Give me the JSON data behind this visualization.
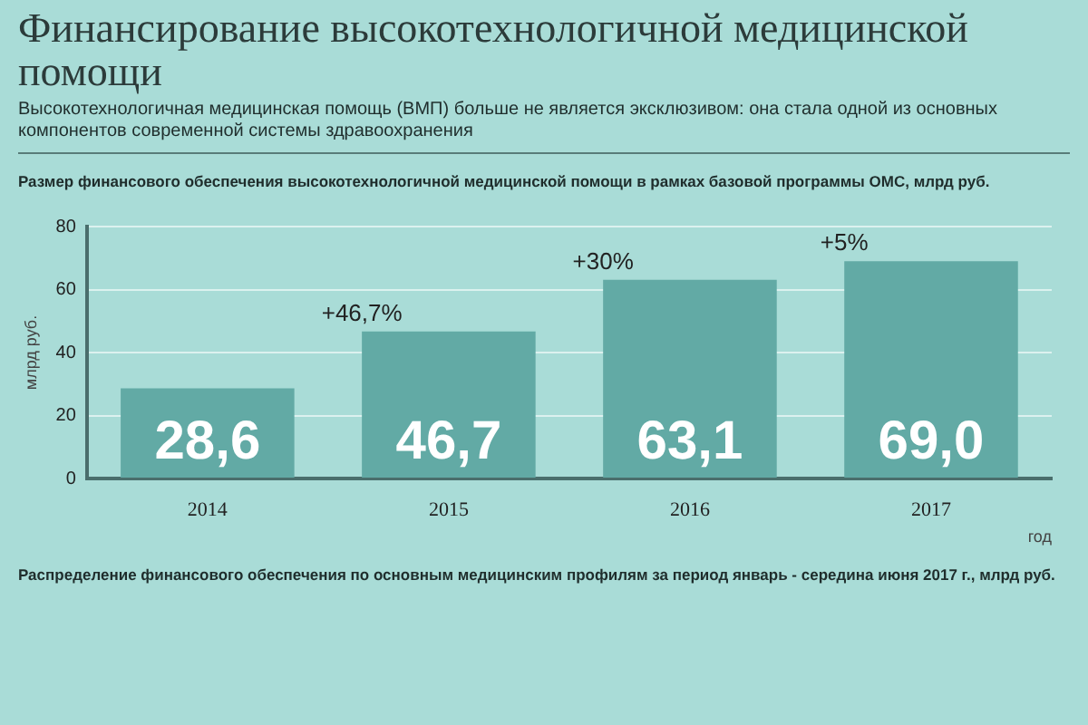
{
  "chart_data": {
    "type": "bar",
    "title": "Финансирование высокотехнологичной медицинской помощи",
    "subtitle": "Высокотехнологичная медицинская помощь (ВМП) больше не является эксклюзивом: она стала одной из основных компонентов современной системы здравоохранения",
    "categories": [
      "2014",
      "2015",
      "2016",
      "2017"
    ],
    "values": [
      28.6,
      46.7,
      63.1,
      69.0
    ],
    "value_labels": [
      "28,6",
      "46,7",
      "63,1",
      "69,0"
    ],
    "color": "#62aaa5",
    "ylabel": "млрд руб.",
    "xlabel": "год",
    "ylim": [
      0,
      80
    ],
    "yticks": [
      0,
      20,
      40,
      60,
      80
    ],
    "grid": "y",
    "legend": false,
    "annotations": [
      "Размер финансового обеспечения высокотехнологичной медицинской помощи в рамках базовой программы ОМС, млрд руб.",
      {
        "text": "+46,7%",
        "x": "2015",
        "y": 46.7
      },
      {
        "text": "+30%",
        "x": "2016",
        "y": 63.1
      },
      {
        "text": "+5%",
        "x": "2017",
        "y": 69.0
      },
      "Распределение финансового обеспечения по основным медицинским профилям за период январь - середина июня 2017 г., млрд руб."
    ]
  }
}
